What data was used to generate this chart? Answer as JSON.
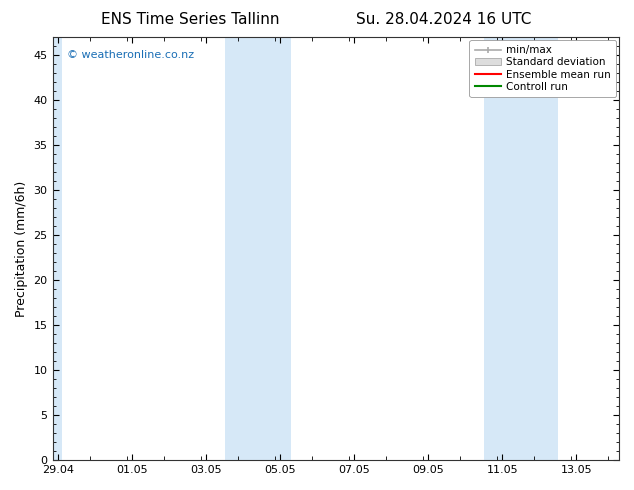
{
  "title_left": "ENS Time Series Tallinn",
  "title_right": "Su. 28.04.2024 16 UTC",
  "ylabel": "Precipitation (mm/6h)",
  "watermark": "© weatheronline.co.nz",
  "watermark_color": "#1a6eb5",
  "background_color": "#ffffff",
  "plot_bg_color": "#ffffff",
  "ylim": [
    0,
    47
  ],
  "yticks": [
    0,
    5,
    10,
    15,
    20,
    25,
    30,
    35,
    40,
    45
  ],
  "x_labels": [
    "29.04",
    "01.05",
    "03.05",
    "05.05",
    "07.05",
    "09.05",
    "11.05",
    "13.05"
  ],
  "x_label_days": [
    0,
    2,
    4,
    6,
    8,
    10,
    12,
    14
  ],
  "xlim": [
    -0.15,
    15.15
  ],
  "shade_bands": [
    [
      -0.15,
      0.1
    ],
    [
      4.5,
      5.5
    ],
    [
      5.5,
      6.3
    ],
    [
      11.5,
      12.3
    ],
    [
      12.3,
      13.5
    ]
  ],
  "shade_color": "#d6e8f7",
  "shade_alpha": 1.0,
  "legend_labels": [
    "min/max",
    "Standard deviation",
    "Ensemble mean run",
    "Controll run"
  ],
  "legend_minmax_color": "#aaaaaa",
  "legend_std_color": "#cccccc",
  "legend_mean_color": "#ff0000",
  "legend_ctrl_color": "#008800",
  "title_fontsize": 11,
  "ylabel_fontsize": 9,
  "tick_fontsize": 8,
  "watermark_fontsize": 8,
  "legend_fontsize": 7.5
}
